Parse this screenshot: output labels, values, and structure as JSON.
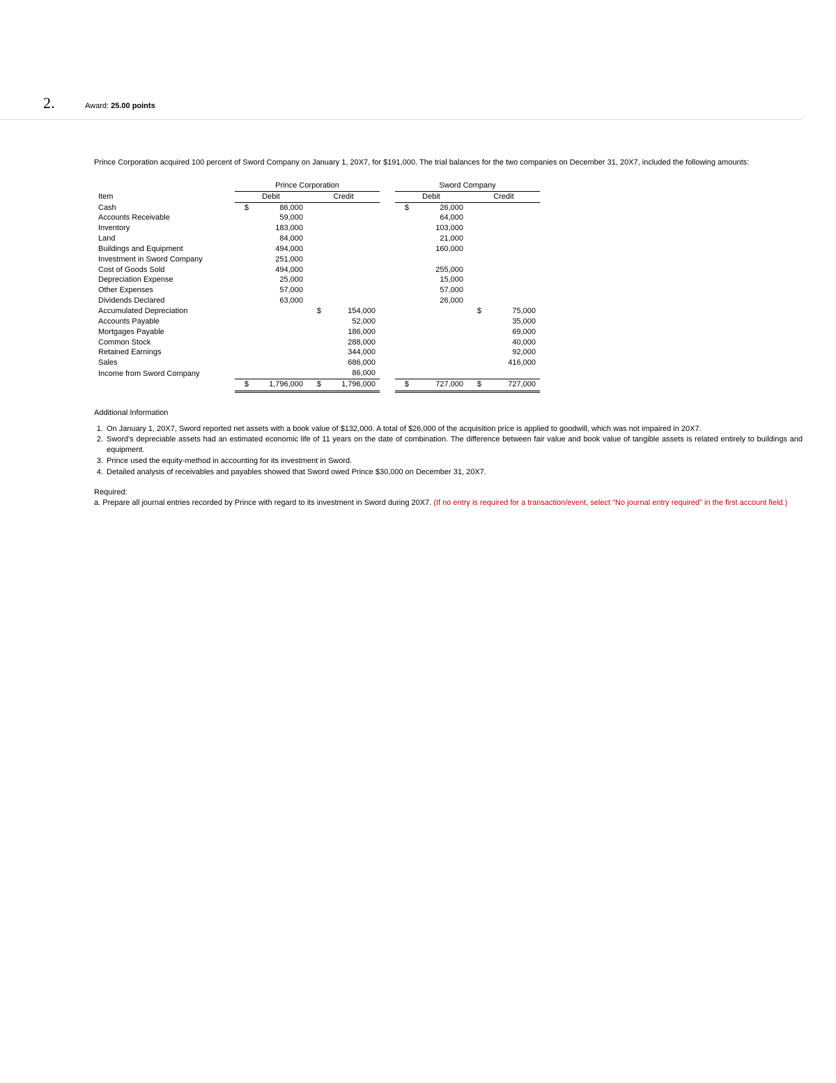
{
  "question_number": "2.",
  "award_label": "Award:",
  "award_points": "25.00 points",
  "intro_text": "Prince Corporation acquired 100 percent of Sword Company on January 1, 20X7, for $191,000. The trial balances for the two companies on December 31, 20X7, included the following amounts:",
  "table": {
    "item_header": "Item",
    "company1": "Prince Corporation",
    "company2": "Sword Company",
    "debit_label": "Debit",
    "credit_label": "Credit",
    "currency": "$",
    "rows": [
      {
        "item": "Cash",
        "pd_sym": "$",
        "pd": "86,000",
        "pc_sym": "",
        "pc": "",
        "sd_sym": "$",
        "sd": "26,000",
        "sc_sym": "",
        "sc": ""
      },
      {
        "item": "Accounts Receivable",
        "pd_sym": "",
        "pd": "59,000",
        "pc_sym": "",
        "pc": "",
        "sd_sym": "",
        "sd": "64,000",
        "sc_sym": "",
        "sc": ""
      },
      {
        "item": "Inventory",
        "pd_sym": "",
        "pd": "183,000",
        "pc_sym": "",
        "pc": "",
        "sd_sym": "",
        "sd": "103,000",
        "sc_sym": "",
        "sc": ""
      },
      {
        "item": "Land",
        "pd_sym": "",
        "pd": "84,000",
        "pc_sym": "",
        "pc": "",
        "sd_sym": "",
        "sd": "21,000",
        "sc_sym": "",
        "sc": ""
      },
      {
        "item": "Buildings and Equipment",
        "pd_sym": "",
        "pd": "494,000",
        "pc_sym": "",
        "pc": "",
        "sd_sym": "",
        "sd": "160,000",
        "sc_sym": "",
        "sc": ""
      },
      {
        "item": "Investment in Sword Company",
        "pd_sym": "",
        "pd": "251,000",
        "pc_sym": "",
        "pc": "",
        "sd_sym": "",
        "sd": "",
        "sc_sym": "",
        "sc": ""
      },
      {
        "item": "Cost of Goods Sold",
        "pd_sym": "",
        "pd": "494,000",
        "pc_sym": "",
        "pc": "",
        "sd_sym": "",
        "sd": "255,000",
        "sc_sym": "",
        "sc": ""
      },
      {
        "item": "Depreciation Expense",
        "pd_sym": "",
        "pd": "25,000",
        "pc_sym": "",
        "pc": "",
        "sd_sym": "",
        "sd": "15,000",
        "sc_sym": "",
        "sc": ""
      },
      {
        "item": "Other Expenses",
        "pd_sym": "",
        "pd": "57,000",
        "pc_sym": "",
        "pc": "",
        "sd_sym": "",
        "sd": "57,000",
        "sc_sym": "",
        "sc": ""
      },
      {
        "item": "Dividends Declared",
        "pd_sym": "",
        "pd": "63,000",
        "pc_sym": "",
        "pc": "",
        "sd_sym": "",
        "sd": "26,000",
        "sc_sym": "",
        "sc": ""
      },
      {
        "item": "Accumulated Depreciation",
        "pd_sym": "",
        "pd": "",
        "pc_sym": "$",
        "pc": "154,000",
        "sd_sym": "",
        "sd": "",
        "sc_sym": "$",
        "sc": "75,000"
      },
      {
        "item": "Accounts Payable",
        "pd_sym": "",
        "pd": "",
        "pc_sym": "",
        "pc": "52,000",
        "sd_sym": "",
        "sd": "",
        "sc_sym": "",
        "sc": "35,000"
      },
      {
        "item": "Mortgages Payable",
        "pd_sym": "",
        "pd": "",
        "pc_sym": "",
        "pc": "186,000",
        "sd_sym": "",
        "sd": "",
        "sc_sym": "",
        "sc": "69,000"
      },
      {
        "item": "Common Stock",
        "pd_sym": "",
        "pd": "",
        "pc_sym": "",
        "pc": "288,000",
        "sd_sym": "",
        "sd": "",
        "sc_sym": "",
        "sc": "40,000"
      },
      {
        "item": "Retained Earnings",
        "pd_sym": "",
        "pd": "",
        "pc_sym": "",
        "pc": "344,000",
        "sd_sym": "",
        "sd": "",
        "sc_sym": "",
        "sc": "92,000"
      },
      {
        "item": "Sales",
        "pd_sym": "",
        "pd": "",
        "pc_sym": "",
        "pc": "686,000",
        "sd_sym": "",
        "sd": "",
        "sc_sym": "",
        "sc": "416,000"
      },
      {
        "item": "Income from Sword Company",
        "pd_sym": "",
        "pd": "",
        "pc_sym": "",
        "pc": "86,000",
        "sd_sym": "",
        "sd": "",
        "sc_sym": "",
        "sc": ""
      }
    ],
    "totals": {
      "pd_sym": "$",
      "pd": "1,796,000",
      "pc_sym": "$",
      "pc": "1,796,000",
      "sd_sym": "$",
      "sd": "727,000",
      "sc_sym": "$",
      "sc": "727,000"
    }
  },
  "additional_heading": "Additional Information",
  "additional_items": [
    "On January 1, 20X7, Sword reported net assets with a book value of $132,000. A total of $26,000 of the acquisition price is applied to goodwill, which was not impaired in 20X7.",
    "Sword's depreciable assets had an estimated economic life of 11 years on the date of combination. The difference between fair value and book value of tangible assets is related entirely to buildings and equipment.",
    "Prince used the equity-method in accounting for its investment in Sword.",
    "Detailed analysis of receivables and payables showed that Sword owed Prince $30,000 on December 31, 20X7."
  ],
  "required_label": "Required:",
  "required_a_prefix": "a. Prepare all journal entries recorded by Prince with regard to its investment in Sword during 20X7. ",
  "required_a_red": "(If no entry is required for a transaction/event, select \"No journal entry required\" in the first account field.)",
  "colors": {
    "text": "#000000",
    "divider": "#dcdcdc",
    "highlight": "#cc0000",
    "background": "#ffffff"
  }
}
